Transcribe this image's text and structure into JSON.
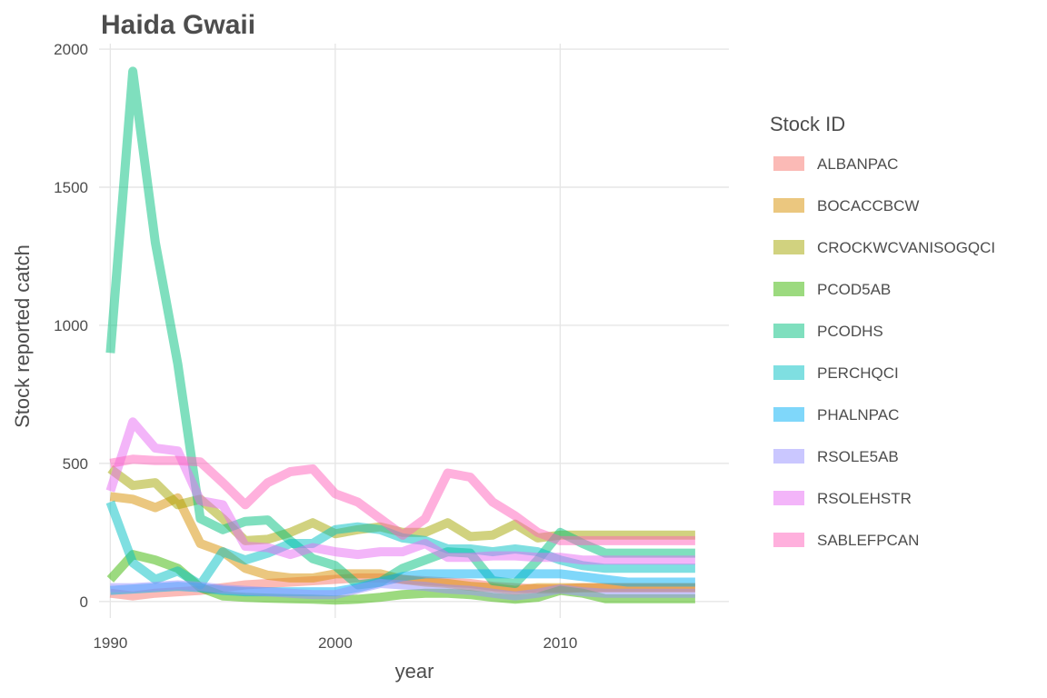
{
  "chart_data": {
    "type": "line",
    "title": "Haida Gwaii",
    "xlabel": "year",
    "ylabel": "Stock reported catch",
    "xlim": [
      1989.5,
      2017.5
    ],
    "ylim": [
      -60,
      2020
    ],
    "xticks": [
      1990,
      2000,
      2010
    ],
    "yticks": [
      0,
      500,
      1000,
      1500,
      2000
    ],
    "grid": true,
    "legend": {
      "title": "Stock ID",
      "position": "right"
    },
    "x": [
      1990,
      1991,
      1992,
      1993,
      1994,
      1995,
      1996,
      1997,
      1998,
      1999,
      2000,
      2001,
      2002,
      2003,
      2004,
      2005,
      2006,
      2007,
      2008,
      2009,
      2010,
      2011,
      2012,
      2013,
      2014,
      2015,
      2016
    ],
    "series": [
      {
        "name": "ALBANPAC",
        "color": "#F8766D",
        "values": [
          30,
          20,
          30,
          35,
          40,
          50,
          60,
          65,
          70,
          75,
          80,
          85,
          85,
          80,
          75,
          70,
          65,
          55,
          50,
          45,
          45,
          50,
          50,
          50,
          50,
          50,
          50
        ]
      },
      {
        "name": "BOCACCBCW",
        "color": "#D89000",
        "values": [
          380,
          370,
          340,
          375,
          210,
          180,
          120,
          95,
          85,
          85,
          100,
          100,
          100,
          80,
          70,
          65,
          55,
          50,
          40,
          50,
          50,
          50,
          50,
          50,
          50,
          50,
          50
        ]
      },
      {
        "name": "CROCKWCVANISOGQCI",
        "color": "#A3A500",
        "values": [
          480,
          420,
          430,
          350,
          370,
          300,
          220,
          225,
          250,
          285,
          245,
          260,
          270,
          250,
          250,
          285,
          235,
          240,
          280,
          230,
          240,
          240,
          240,
          240,
          240,
          240,
          240
        ]
      },
      {
        "name": "PCOD5AB",
        "color": "#39B600",
        "values": [
          80,
          170,
          150,
          120,
          50,
          20,
          15,
          12,
          10,
          8,
          5,
          8,
          15,
          25,
          30,
          30,
          25,
          15,
          8,
          15,
          40,
          30,
          10,
          10,
          10,
          10,
          10
        ]
      },
      {
        "name": "PCODHS",
        "color": "#00BF7D",
        "values": [
          900,
          1920,
          1300,
          860,
          300,
          260,
          290,
          295,
          220,
          155,
          130,
          60,
          70,
          120,
          150,
          180,
          175,
          75,
          65,
          150,
          250,
          210,
          175,
          175,
          175,
          175,
          175
        ]
      },
      {
        "name": "PERCHQCI",
        "color": "#00BFC4",
        "values": [
          360,
          140,
          80,
          110,
          60,
          180,
          150,
          175,
          210,
          210,
          260,
          270,
          260,
          230,
          220,
          190,
          190,
          180,
          190,
          180,
          150,
          130,
          120,
          120,
          120,
          120,
          120
        ]
      },
      {
        "name": "PHALNPAC",
        "color": "#00B0F6",
        "values": [
          40,
          45,
          50,
          55,
          50,
          40,
          35,
          35,
          35,
          35,
          35,
          50,
          70,
          90,
          100,
          100,
          100,
          100,
          100,
          100,
          100,
          90,
          80,
          70,
          70,
          70,
          70
        ]
      },
      {
        "name": "RSOLE5AB",
        "color": "#9590FF",
        "values": [
          50,
          50,
          55,
          60,
          55,
          45,
          40,
          35,
          30,
          25,
          25,
          45,
          65,
          60,
          55,
          45,
          40,
          30,
          20,
          30,
          45,
          35,
          30,
          30,
          30,
          30,
          30
        ]
      },
      {
        "name": "RSOLEHSTR",
        "color": "#E76BF3",
        "values": [
          400,
          650,
          555,
          545,
          365,
          350,
          200,
          195,
          170,
          195,
          180,
          170,
          180,
          180,
          210,
          160,
          160,
          165,
          165,
          160,
          160,
          150,
          150,
          150,
          150,
          150,
          150
        ]
      },
      {
        "name": "SABLEFPCAN",
        "color": "#FF62BC",
        "values": [
          500,
          515,
          510,
          510,
          505,
          430,
          350,
          430,
          470,
          480,
          390,
          360,
          300,
          240,
          300,
          465,
          450,
          360,
          310,
          250,
          220,
          220,
          220,
          220,
          220,
          220,
          220
        ]
      }
    ]
  }
}
